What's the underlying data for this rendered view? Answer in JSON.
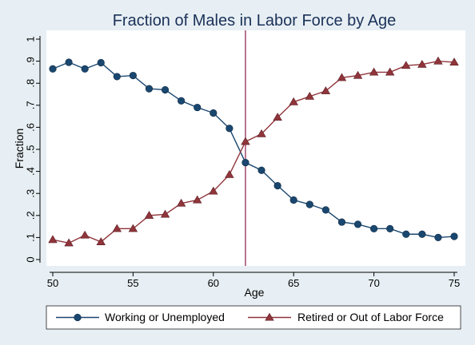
{
  "chart_data": {
    "type": "line",
    "title": "Fraction of Males in Labor Force by Age",
    "xlabel": "Age",
    "ylabel": "Fraction",
    "xlim": [
      50,
      75
    ],
    "ylim": [
      0,
      1
    ],
    "x_ticks": [
      50,
      55,
      60,
      65,
      70,
      75
    ],
    "y_ticks": [
      0,
      0.1,
      0.2,
      0.3,
      0.4,
      0.5,
      0.6,
      0.7,
      0.8,
      0.9,
      1
    ],
    "y_tick_labels": [
      "0",
      ".1",
      ".2",
      ".3",
      ".4",
      ".5",
      ".6",
      ".7",
      ".8",
      ".9",
      "1"
    ],
    "vertical_line_x": 62,
    "vertical_line_color": "#8b1a4a",
    "grid": false,
    "legend_position": "bottom",
    "x": [
      50,
      51,
      52,
      53,
      54,
      55,
      56,
      57,
      58,
      59,
      60,
      61,
      62,
      63,
      64,
      65,
      66,
      67,
      68,
      69,
      70,
      71,
      72,
      73,
      74,
      75
    ],
    "series": [
      {
        "name": "Working or Unemployed",
        "marker": "circle",
        "color": "#1a476f",
        "values": [
          0.865,
          0.895,
          0.865,
          0.893,
          0.83,
          0.835,
          0.775,
          0.77,
          0.72,
          0.69,
          0.665,
          0.595,
          0.44,
          0.405,
          0.335,
          0.27,
          0.25,
          0.225,
          0.17,
          0.16,
          0.14,
          0.14,
          0.115,
          0.115,
          0.1,
          0.105
        ]
      },
      {
        "name": "Retired or Out of Labor Force",
        "marker": "triangle",
        "color": "#90353b",
        "values": [
          0.09,
          0.075,
          0.11,
          0.08,
          0.14,
          0.14,
          0.2,
          0.205,
          0.255,
          0.27,
          0.31,
          0.385,
          0.535,
          0.57,
          0.645,
          0.715,
          0.74,
          0.765,
          0.825,
          0.835,
          0.85,
          0.85,
          0.88,
          0.885,
          0.9,
          0.895
        ]
      }
    ]
  }
}
